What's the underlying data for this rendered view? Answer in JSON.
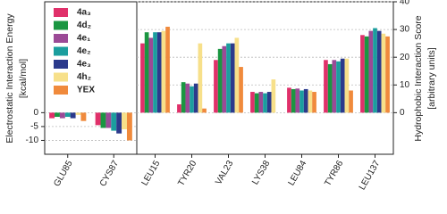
{
  "chart_data": [
    {
      "type": "bar",
      "ylabel": [
        "Electrostatic Interaction Energy",
        "[kcal/mol]"
      ],
      "yaxis_position": "left",
      "categories": [
        "GLU85",
        "CYS87"
      ],
      "ylim": [
        -15,
        40
      ],
      "yticks": [
        -10,
        -5,
        0
      ],
      "grid": true,
      "legend": "upper left",
      "series": [
        {
          "name": "4a₃",
          "color": "#e0306a",
          "values": [
            -2,
            -4.5
          ]
        },
        {
          "name": "4d₂",
          "color": "#1a9641",
          "values": [
            -1.5,
            -5.5
          ]
        },
        {
          "name": "4e₁",
          "color": "#9b4a96",
          "values": [
            -2,
            -5.5
          ]
        },
        {
          "name": "4e₂",
          "color": "#1b9e9e",
          "values": [
            -1.5,
            -6.5
          ]
        },
        {
          "name": "4e₃",
          "color": "#2b3a8c",
          "values": [
            -2,
            -7.5
          ]
        },
        {
          "name": "4h₂",
          "color": "#f7e08a",
          "values": [
            -0.8,
            -6
          ]
        },
        {
          "name": "YEX",
          "color": "#f08a3c",
          "values": [
            -3,
            -10
          ]
        }
      ]
    },
    {
      "type": "bar",
      "ylabel": [
        "Hydrophobic Interaction Score",
        "[arbitrary units]"
      ],
      "yaxis_position": "right",
      "categories": [
        "LEU15",
        "TYR20",
        "VAL23",
        "LYS38",
        "LEU84",
        "TYR86",
        "LEU137"
      ],
      "ylim": [
        -15,
        40
      ],
      "yticks": [
        0,
        10,
        20,
        30,
        40
      ],
      "grid": true,
      "series": [
        {
          "color": "#e0306a",
          "values": [
            25,
            3,
            19,
            7.5,
            9,
            19,
            28
          ]
        },
        {
          "color": "#1a9641",
          "values": [
            29,
            11,
            23,
            7,
            8.5,
            17.5,
            27.5
          ]
        },
        {
          "color": "#9b4a96",
          "values": [
            27,
            10.5,
            24,
            7.5,
            8.7,
            19,
            29.5
          ]
        },
        {
          "color": "#1b9e9e",
          "values": [
            29,
            9.5,
            25,
            7,
            8,
            18.5,
            30.5
          ]
        },
        {
          "color": "#2b3a8c",
          "values": [
            29,
            10.5,
            25,
            7.5,
            8.5,
            19.5,
            29.5
          ]
        },
        {
          "color": "#f7e08a",
          "values": [
            29.5,
            25,
            27,
            12,
            8,
            19.5,
            28.5
          ]
        },
        {
          "color": "#f08a3c",
          "values": [
            31,
            1.5,
            16.5,
            0,
            7.5,
            8,
            27.5
          ]
        }
      ]
    }
  ]
}
